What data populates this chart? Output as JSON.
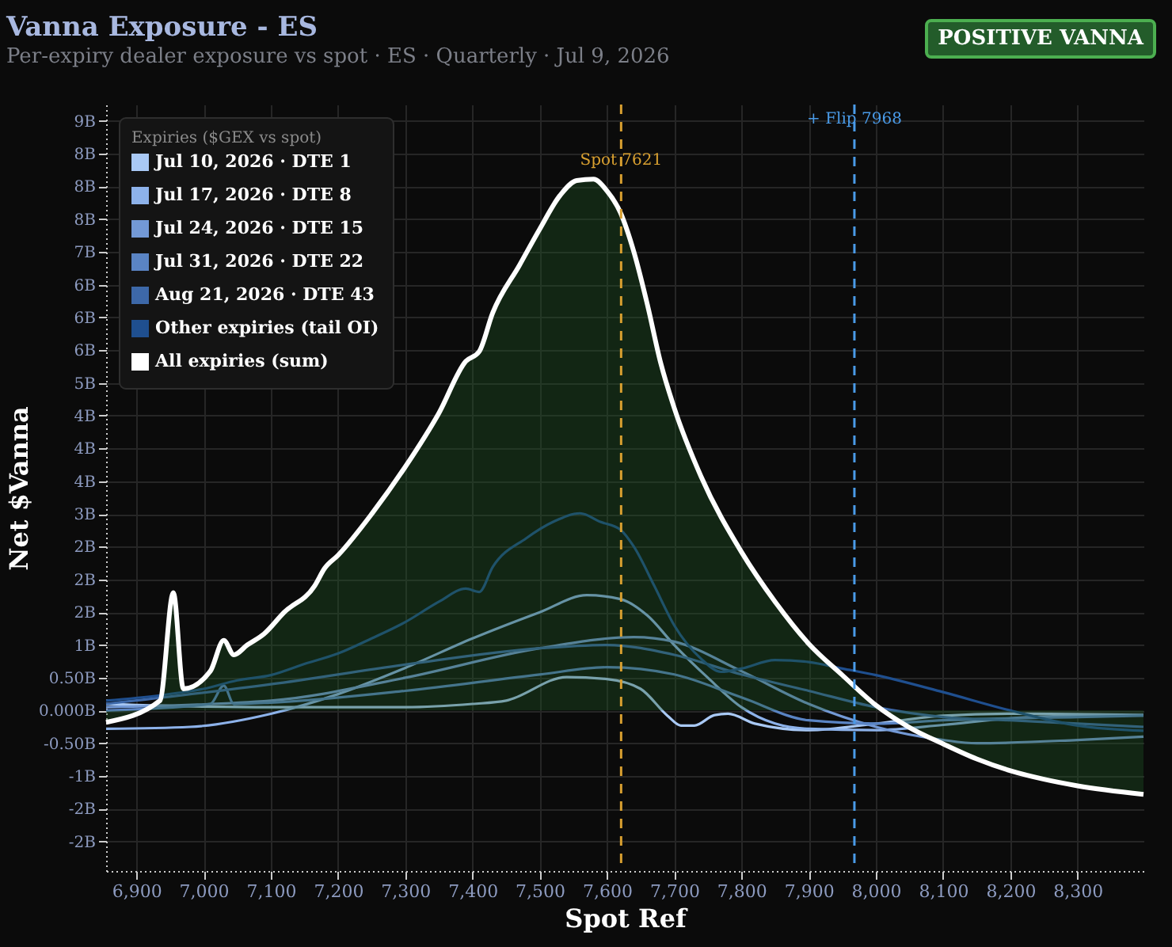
{
  "chart_data": {
    "type": "line",
    "title": "Vanna Exposure - ES",
    "subtitle": "Per-expiry dealer exposure vs spot · ES · Quarterly · Jul 9, 2026",
    "xlabel": "Spot Ref",
    "ylabel": "Net $Vanna",
    "legend_title": "Expiries ($GEX vs spot)",
    "annotations": [
      "POSITIVE VANNA"
    ],
    "xlim": [
      6855,
      8398
    ],
    "xticks": [
      {
        "value": 6900,
        "label": "6,900"
      },
      {
        "value": 7000,
        "label": "7,000"
      },
      {
        "value": 7100,
        "label": "7,100"
      },
      {
        "value": 7200,
        "label": "7,200"
      },
      {
        "value": 7300,
        "label": "7,300"
      },
      {
        "value": 7400,
        "label": "7,400"
      },
      {
        "value": 7500,
        "label": "7,500"
      },
      {
        "value": 7600,
        "label": "7,600"
      },
      {
        "value": 7700,
        "label": "7,700"
      },
      {
        "value": 7800,
        "label": "7,800"
      },
      {
        "value": 7900,
        "label": "7,900"
      },
      {
        "value": 8000,
        "label": "8,000"
      },
      {
        "value": 8100,
        "label": "8,100"
      },
      {
        "value": 8200,
        "label": "8,200"
      },
      {
        "value": 8300,
        "label": "8,300"
      }
    ],
    "ylim": [
      -2.45,
      9.25
    ],
    "yticks": [
      {
        "value": -2,
        "label": "-2B"
      },
      {
        "value": -1.5,
        "label": "-2B"
      },
      {
        "value": -1,
        "label": "-1B"
      },
      {
        "value": -0.5,
        "label": "-0.50B"
      },
      {
        "value": 0,
        "label": "0.000B"
      },
      {
        "value": 0.5,
        "label": "0.50B"
      },
      {
        "value": 1,
        "label": "1B"
      },
      {
        "value": 1.5,
        "label": "2B"
      },
      {
        "value": 2,
        "label": "2B"
      },
      {
        "value": 2.5,
        "label": "2B"
      },
      {
        "value": 3,
        "label": "3B"
      },
      {
        "value": 3.5,
        "label": "4B"
      },
      {
        "value": 4,
        "label": "4B"
      },
      {
        "value": 4.5,
        "label": "4B"
      },
      {
        "value": 5,
        "label": "5B"
      },
      {
        "value": 5.5,
        "label": "6B"
      },
      {
        "value": 6,
        "label": "6B"
      },
      {
        "value": 6.5,
        "label": "6B"
      },
      {
        "value": 7,
        "label": "7B"
      },
      {
        "value": 7.5,
        "label": "8B"
      },
      {
        "value": 8,
        "label": "8B"
      },
      {
        "value": 8.5,
        "label": "8B"
      },
      {
        "value": 9,
        "label": "9B"
      }
    ],
    "grid": true,
    "legend": "top left",
    "ref_lines": [
      {
        "axis": "x",
        "value": 7621,
        "label": "Spot 7621",
        "color": "#d9a030",
        "line_style": "dashed"
      },
      {
        "axis": "x",
        "value": 7968,
        "label": "+ Flip 7968",
        "color": "#4a9be8",
        "line_style": "dashed"
      }
    ],
    "series": [
      {
        "name": "Jul 10, 2026 · DTE 1",
        "color": "#a9c9f5",
        "x": [
          6855,
          7000,
          7100,
          7300,
          7400,
          7450,
          7540,
          7600,
          7650,
          7690,
          7710,
          7730,
          7760,
          7780,
          7820,
          7900,
          8000,
          8100,
          8200,
          8398
        ],
        "values": [
          0.1,
          0.06,
          0.05,
          0.05,
          0.1,
          0.15,
          0.51,
          0.48,
          0.33,
          -0.08,
          -0.23,
          -0.23,
          -0.07,
          -0.05,
          -0.2,
          -0.3,
          -0.2,
          -0.08,
          -0.05,
          -0.07
        ]
      },
      {
        "name": "Jul 17, 2026 · DTE 8",
        "color": "#8db2ea",
        "x": [
          6855,
          6980,
          7100,
          7200,
          7300,
          7400,
          7500,
          7570,
          7620,
          7660,
          7700,
          7750,
          7800,
          7850,
          7900,
          8000,
          8100,
          8200,
          8300,
          8398
        ],
        "values": [
          -0.28,
          -0.25,
          -0.05,
          0.25,
          0.65,
          1.1,
          1.5,
          1.76,
          1.7,
          1.45,
          1.0,
          0.5,
          0.05,
          -0.2,
          -0.28,
          -0.3,
          -0.22,
          -0.12,
          -0.08,
          -0.07
        ]
      },
      {
        "name": "Jul 24, 2026 · DTE 15",
        "color": "#7399d6",
        "x": [
          6855,
          7100,
          7300,
          7500,
          7640,
          7700,
          7800,
          7900,
          8000,
          8100,
          8150,
          8300,
          8398
        ],
        "values": [
          0.05,
          0.15,
          0.5,
          0.95,
          1.12,
          1.05,
          0.6,
          0.1,
          -0.25,
          -0.45,
          -0.5,
          -0.45,
          -0.4
        ]
      },
      {
        "name": "Jul 31, 2026 · DTE 22",
        "color": "#5a84c4",
        "x": [
          6855,
          7010,
          7030,
          7045,
          7100,
          7300,
          7500,
          7600,
          7700,
          7800,
          7900,
          8000,
          8100,
          8300,
          8398
        ],
        "values": [
          0.0,
          0.1,
          0.38,
          0.1,
          0.12,
          0.3,
          0.55,
          0.66,
          0.55,
          0.2,
          -0.15,
          -0.2,
          -0.15,
          -0.1,
          -0.08
        ]
      },
      {
        "name": "Aug 21, 2026 · DTE 43",
        "color": "#3d68a8",
        "x": [
          6855,
          7100,
          7300,
          7500,
          7600,
          7700,
          7800,
          7900,
          8000,
          8100,
          8200,
          8300,
          8398
        ],
        "values": [
          0.1,
          0.4,
          0.7,
          0.95,
          1.0,
          0.85,
          0.55,
          0.3,
          0.05,
          -0.1,
          -0.15,
          -0.2,
          -0.25
        ]
      },
      {
        "name": "Other expiries (tail OI)",
        "color": "#1f4f8f",
        "x": [
          6855,
          6935,
          7000,
          7050,
          7100,
          7150,
          7200,
          7250,
          7300,
          7350,
          7390,
          7410,
          7430,
          7480,
          7520,
          7560,
          7590,
          7620,
          7640,
          7670,
          7700,
          7740,
          7770,
          7800,
          7850,
          7900,
          7950,
          8000,
          8100,
          8200,
          8300,
          8398
        ],
        "values": [
          0.15,
          0.23,
          0.33,
          0.46,
          0.54,
          0.71,
          0.87,
          1.1,
          1.35,
          1.66,
          1.86,
          1.81,
          2.19,
          2.63,
          2.88,
          3.01,
          2.88,
          2.76,
          2.5,
          1.91,
          1.3,
          0.79,
          0.59,
          0.64,
          0.77,
          0.74,
          0.64,
          0.54,
          0.28,
          0.0,
          -0.23,
          -0.31
        ]
      },
      {
        "name": "All expiries (sum)",
        "color": "#ffffff",
        "type": "area",
        "x": [
          6855,
          6935,
          6955,
          6970,
          7010,
          7030,
          7045,
          7065,
          7090,
          7120,
          7165,
          7180,
          7200,
          7250,
          7300,
          7350,
          7390,
          7410,
          7430,
          7470,
          7500,
          7530,
          7555,
          7580,
          7600,
          7620,
          7640,
          7660,
          7680,
          7700,
          7740,
          7800,
          7850,
          7900,
          7950,
          8000,
          8050,
          8100,
          8150,
          8200,
          8250,
          8300,
          8398
        ],
        "values": [
          -0.18,
          0.15,
          1.8,
          0.33,
          0.6,
          1.07,
          0.85,
          1.0,
          1.17,
          1.5,
          1.9,
          2.17,
          2.37,
          3.0,
          3.72,
          4.54,
          5.33,
          5.48,
          6.07,
          6.8,
          7.35,
          7.86,
          8.09,
          8.11,
          7.93,
          7.6,
          7.0,
          6.2,
          5.3,
          4.62,
          3.57,
          2.42,
          1.66,
          1.02,
          0.54,
          0.08,
          -0.26,
          -0.51,
          -0.74,
          -0.92,
          -1.05,
          -1.15,
          -1.28
        ]
      }
    ]
  }
}
